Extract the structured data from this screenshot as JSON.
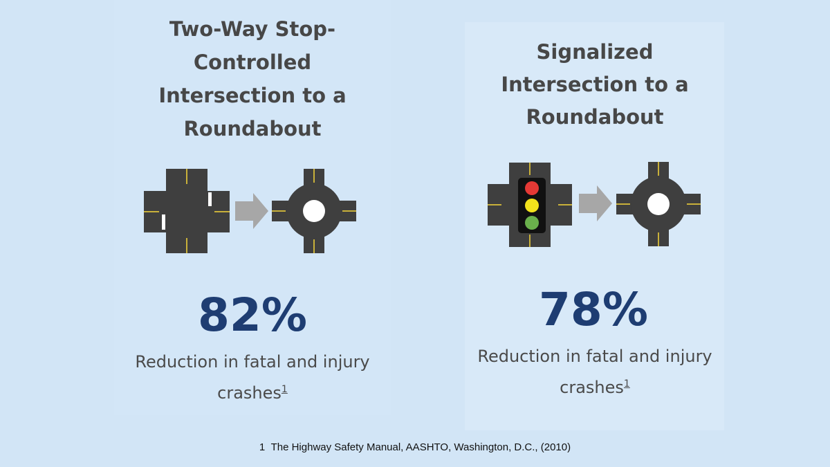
{
  "left": {
    "title_lines": [
      "Two-Way Stop-",
      "Controlled",
      "Intersection to a",
      "Roundabout"
    ],
    "percent": "82%",
    "desc_line1": "Reduction in fatal and injury",
    "desc_line2": "crashes",
    "footnote_ref": "1"
  },
  "right": {
    "title_lines": [
      "Signalized",
      "Intersection to a",
      "Roundabout"
    ],
    "percent": "78%",
    "desc_line1": "Reduction in fatal and injury",
    "desc_line2": "crashes",
    "footnote_ref": "1"
  },
  "footnote": {
    "number": "1",
    "text": "The Highway Safety Manual, AASHTO, Washington, D.C., (2010)"
  },
  "colors": {
    "background": "#d2e5f6",
    "road": "#3f3f3f",
    "lane_marking": "#c9b13a",
    "arrow": "#a7a7a7",
    "percent": "#1e3d72",
    "signal_red": "#e53935",
    "signal_yellow": "#f2e21c",
    "signal_green": "#6ab04c"
  },
  "icons": [
    "intersection-icon",
    "arrow-right-icon",
    "roundabout-icon",
    "traffic-signal-icon"
  ]
}
